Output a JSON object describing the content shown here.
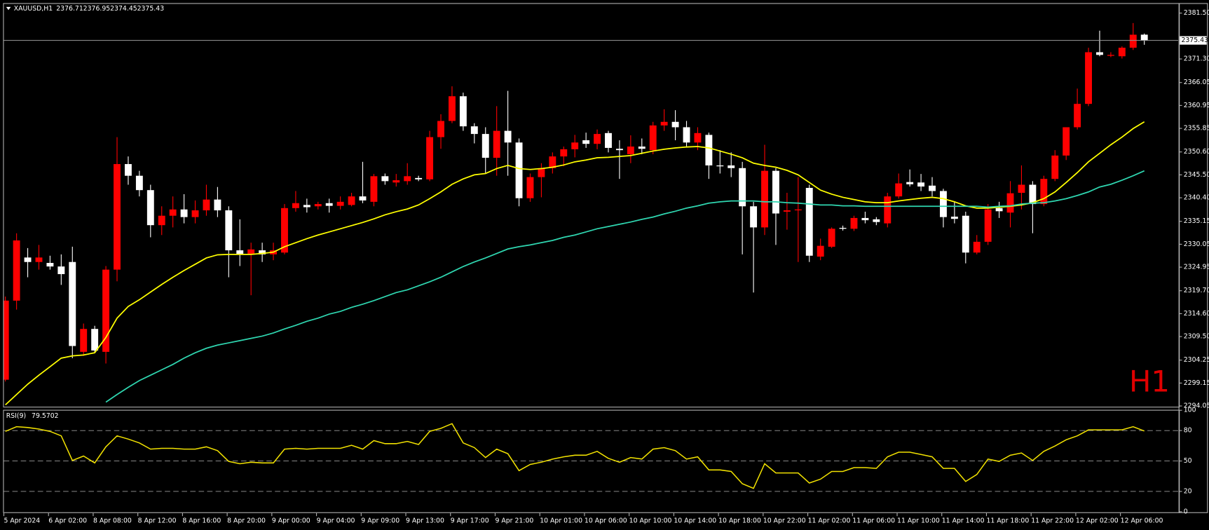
{
  "chart_data": [
    {
      "type": "candlestick",
      "title": "XAUUSD,H1",
      "ohlc": [
        2376.71,
        2376.95,
        2374.45,
        2375.43
      ],
      "watermark": "H1",
      "up_color": "#ff0000",
      "down_color": "#ffffff",
      "ylim": [
        2293.71,
        2383.56
      ],
      "yticks": [
        {
          "value": 2381.5,
          "label": "2381.50"
        },
        {
          "value": 2371.3,
          "label": "2371.30"
        },
        2366.05,
        2360.95,
        2355.85,
        {
          "value": 2350.6,
          "label": "2350.60"
        },
        {
          "value": 2345.5,
          "label": "2345.50"
        },
        {
          "value": 2340.4,
          "label": "2340.40"
        },
        2335.15,
        2330.05,
        2324.95,
        {
          "value": 2319.7,
          "label": "2319.70"
        },
        {
          "value": 2314.6,
          "label": "2314.60"
        },
        {
          "value": 2309.5,
          "label": "2309.50"
        },
        2304.25,
        2299.15,
        2294.05
      ],
      "price_line": 2375.43,
      "categories": [
        "5 Apr 2024",
        null,
        null,
        null,
        "6 Apr 02:00",
        null,
        null,
        null,
        "8 Apr 08:00",
        null,
        null,
        null,
        "8 Apr 12:00",
        null,
        null,
        null,
        "8 Apr 16:00",
        null,
        null,
        null,
        "8 Apr 20:00",
        null,
        null,
        null,
        "9 Apr 00:00",
        null,
        null,
        null,
        "9 Apr 04:00",
        null,
        null,
        null,
        "9 Apr 09:00",
        null,
        null,
        null,
        "9 Apr 13:00",
        null,
        null,
        null,
        "9 Apr 17:00",
        null,
        null,
        null,
        "9 Apr 21:00",
        null,
        null,
        null,
        "10 Apr 01:00",
        null,
        null,
        null,
        "10 Apr 06:00",
        null,
        null,
        null,
        "10 Apr 10:00",
        null,
        null,
        null,
        "10 Apr 14:00",
        null,
        null,
        null,
        "10 Apr 18:00",
        null,
        null,
        null,
        "10 Apr 22:00",
        null,
        null,
        null,
        "11 Apr 02:00",
        null,
        null,
        null,
        "11 Apr 06:00",
        null,
        null,
        null,
        "11 Apr 10:00",
        null,
        null,
        null,
        "11 Apr 14:00",
        null,
        null,
        null,
        "11 Apr 18:00",
        null,
        null,
        null,
        "11 Apr 22:00",
        null,
        null,
        null,
        "12 Apr 02:00",
        null,
        null,
        null,
        "12 Apr 06:00",
        null,
        null
      ],
      "open": [
        2299.9,
        2317.5,
        2327.1,
        2326.1,
        2325.9,
        2325.1,
        2326.1,
        2306.1,
        2311.2,
        2306.1,
        2324.4,
        2347.9,
        2345.3,
        2342.1,
        2334.3,
        2336.4,
        2337.8,
        2336.1,
        2337.6,
        2340.0,
        2337.6,
        2328.7,
        2327.8,
        2328.7,
        2327.8,
        2328.2,
        2338.1,
        2338.8,
        2338.5,
        2339.2,
        2338.6,
        2338.8,
        2340.7,
        2339.5,
        2345.2,
        2343.8,
        2344.1,
        2344.8,
        2344.5,
        2353.9,
        2357.5,
        2363.0,
        2356.3,
        2354.6,
        2349.3,
        2355.3,
        2352.7,
        2340.3,
        2345.0,
        2347.0,
        2349.6,
        2351.2,
        2353.2,
        2352.4,
        2354.8,
        2351.3,
        2350.1,
        2351.8,
        2351.0,
        2356.5,
        2357.3,
        2356.1,
        2352.7,
        2354.4,
        2347.6,
        2347.6,
        2347.0,
        2338.5,
        2333.8,
        2346.4,
        2337.3,
        2337.6,
        2342.6,
        2327.3,
        2329.5,
        2333.7,
        2333.5,
        2335.9,
        2335.6,
        2334.7,
        2340.7,
        2343.9,
        2343.8,
        2343.1,
        2341.9,
        2336.2,
        2336.4,
        2328.2,
        2330.6,
        2338.1,
        2337.1,
        2341.5,
        2343.3,
        2339.0,
        2344.6,
        2349.8,
        2356.1,
        2361.3,
        2372.8,
        2372.0,
        2371.9,
        2373.8,
        2376.71
      ],
      "high": [
        2318.4,
        2332.5,
        2329.2,
        2329.9,
        2327.5,
        2327.8,
        2329.5,
        2312.4,
        2311.9,
        2325.2,
        2353.9,
        2349.6,
        2346.4,
        2343.3,
        2338.5,
        2340.7,
        2341.2,
        2339.8,
        2343.3,
        2342.8,
        2338.5,
        2335.6,
        2330.4,
        2330.4,
        2330.4,
        2339.0,
        2341.9,
        2340.2,
        2339.5,
        2340.2,
        2340.7,
        2341.5,
        2348.4,
        2345.7,
        2345.8,
        2345.7,
        2348.1,
        2345.3,
        2355.3,
        2359.0,
        2365.2,
        2363.8,
        2357.0,
        2356.1,
        2360.8,
        2364.2,
        2353.6,
        2345.8,
        2348.1,
        2350.5,
        2351.8,
        2354.4,
        2354.9,
        2355.6,
        2355.3,
        2353.2,
        2354.3,
        2353.6,
        2357.3,
        2360.1,
        2359.9,
        2357.5,
        2356.1,
        2354.9,
        2351.0,
        2350.5,
        2348.4,
        2339.5,
        2352.2,
        2347.0,
        2341.5,
        2345.0,
        2343.3,
        2331.3,
        2333.8,
        2334.2,
        2336.4,
        2337.3,
        2336.1,
        2341.5,
        2345.8,
        2346.7,
        2345.7,
        2345.0,
        2342.4,
        2339.5,
        2337.3,
        2332.1,
        2339.0,
        2339.5,
        2344.1,
        2347.6,
        2344.1,
        2345.3,
        2351.0,
        2356.1,
        2364.7,
        2373.8,
        2377.6,
        2372.8,
        2374.1,
        2379.3,
        2376.95
      ],
      "low": [
        2299.5,
        2315.5,
        2322.7,
        2324.4,
        2324.4,
        2321.0,
        2304.7,
        2305.2,
        2305.9,
        2303.5,
        2321.8,
        2343.3,
        2340.7,
        2331.6,
        2332.1,
        2333.8,
        2334.7,
        2334.7,
        2336.4,
        2336.1,
        2322.7,
        2325.2,
        2318.7,
        2326.1,
        2326.5,
        2327.8,
        2337.3,
        2337.1,
        2337.8,
        2337.1,
        2337.8,
        2338.5,
        2339.2,
        2338.5,
        2343.3,
        2342.9,
        2343.3,
        2344.1,
        2344.1,
        2351.3,
        2357.0,
        2355.3,
        2352.5,
        2345.8,
        2345.3,
        2345.3,
        2338.5,
        2339.5,
        2340.5,
        2345.8,
        2347.4,
        2349.4,
        2351.5,
        2351.2,
        2350.5,
        2344.6,
        2348.1,
        2350.1,
        2350.1,
        2355.3,
        2353.2,
        2351.8,
        2351.0,
        2344.6,
        2345.8,
        2345.0,
        2327.8,
        2319.3,
        2332.1,
        2329.9,
        2333.3,
        2326.1,
        2326.1,
        2326.5,
        2329.2,
        2333.1,
        2333.0,
        2334.7,
        2334.3,
        2333.8,
        2340.2,
        2342.9,
        2341.9,
        2340.7,
        2333.8,
        2334.7,
        2325.8,
        2327.8,
        2329.9,
        2335.9,
        2333.8,
        2337.8,
        2332.5,
        2338.5,
        2344.1,
        2348.8,
        2355.6,
        2360.8,
        2371.9,
        2371.7,
        2371.4,
        2373.3,
        2374.45
      ],
      "close": [
        2317.5,
        2330.9,
        2326.1,
        2327.1,
        2325.1,
        2323.4,
        2307.4,
        2311.2,
        2306.4,
        2324.4,
        2347.9,
        2345.3,
        2342.1,
        2334.3,
        2336.4,
        2337.8,
        2336.1,
        2337.6,
        2340.0,
        2337.6,
        2328.7,
        2327.8,
        2328.9,
        2327.8,
        2328.7,
        2338.1,
        2339.2,
        2338.3,
        2339.0,
        2338.6,
        2339.5,
        2340.7,
        2339.8,
        2345.2,
        2344.1,
        2344.3,
        2345.2,
        2344.5,
        2353.9,
        2357.5,
        2363.0,
        2356.3,
        2354.6,
        2349.3,
        2355.3,
        2352.7,
        2340.3,
        2345.0,
        2347.0,
        2349.6,
        2351.2,
        2352.7,
        2352.4,
        2354.6,
        2351.5,
        2351.0,
        2351.8,
        2351.3,
        2356.5,
        2357.3,
        2356.1,
        2352.7,
        2354.8,
        2347.6,
        2347.4,
        2347.0,
        2338.5,
        2333.8,
        2346.4,
        2336.9,
        2337.6,
        2337.8,
        2327.5,
        2329.7,
        2333.5,
        2333.5,
        2335.9,
        2335.4,
        2335.0,
        2340.7,
        2343.6,
        2343.4,
        2342.9,
        2341.9,
        2336.1,
        2335.7,
        2328.2,
        2330.6,
        2337.8,
        2337.4,
        2341.4,
        2343.3,
        2339.0,
        2344.6,
        2349.8,
        2356.1,
        2361.3,
        2372.8,
        2372.2,
        2372.2,
        2373.8,
        2376.7,
        2375.43
      ],
      "overlays": [
        {
          "color": "#ffff00",
          "values": [
            2294.3,
            2296.6,
            2298.9,
            2300.9,
            2302.8,
            2304.7,
            2305.2,
            2305.4,
            2305.9,
            2309.3,
            2313.6,
            2316.2,
            2317.7,
            2319.4,
            2321.1,
            2322.7,
            2324.2,
            2325.6,
            2327.0,
            2327.7,
            2327.8,
            2327.8,
            2327.8,
            2328.0,
            2328.3,
            2329.5,
            2330.4,
            2331.3,
            2332.1,
            2332.8,
            2333.5,
            2334.2,
            2334.9,
            2335.7,
            2336.6,
            2337.3,
            2337.9,
            2338.8,
            2340.2,
            2341.7,
            2343.4,
            2344.6,
            2345.5,
            2345.8,
            2346.9,
            2347.6,
            2346.9,
            2346.7,
            2346.9,
            2347.2,
            2347.7,
            2348.4,
            2348.8,
            2349.3,
            2349.4,
            2349.6,
            2349.8,
            2350.3,
            2350.8,
            2351.2,
            2351.5,
            2351.7,
            2351.8,
            2351.5,
            2350.8,
            2350.1,
            2349.3,
            2348.1,
            2347.6,
            2347.2,
            2346.5,
            2345.5,
            2343.8,
            2342.1,
            2341.2,
            2340.5,
            2340.0,
            2339.5,
            2339.3,
            2339.3,
            2339.7,
            2340.0,
            2340.3,
            2340.5,
            2340.2,
            2339.5,
            2338.6,
            2338.1,
            2338.1,
            2338.3,
            2338.5,
            2338.8,
            2339.3,
            2340.2,
            2341.7,
            2343.8,
            2346.0,
            2348.4,
            2350.3,
            2352.2,
            2353.9,
            2355.8,
            2357.3
          ]
        },
        {
          "color": "#2fd6b0",
          "values": [
            null,
            null,
            null,
            null,
            null,
            null,
            null,
            null,
            null,
            2294.9,
            2296.6,
            2298.2,
            2299.7,
            2300.9,
            2302.1,
            2303.3,
            2304.7,
            2305.9,
            2306.9,
            2307.6,
            2308.1,
            2308.6,
            2309.1,
            2309.6,
            2310.3,
            2311.2,
            2312.0,
            2312.9,
            2313.6,
            2314.5,
            2315.1,
            2316.0,
            2316.7,
            2317.5,
            2318.4,
            2319.3,
            2319.9,
            2320.8,
            2321.7,
            2322.7,
            2323.9,
            2325.1,
            2326.1,
            2327.0,
            2328.0,
            2329.0,
            2329.5,
            2329.9,
            2330.4,
            2330.9,
            2331.6,
            2332.1,
            2332.8,
            2333.5,
            2334.0,
            2334.5,
            2335.0,
            2335.6,
            2336.1,
            2336.8,
            2337.4,
            2338.1,
            2338.6,
            2339.2,
            2339.5,
            2339.7,
            2339.7,
            2339.7,
            2339.5,
            2339.5,
            2339.3,
            2339.2,
            2339.0,
            2338.8,
            2338.8,
            2338.6,
            2338.6,
            2338.5,
            2338.5,
            2338.5,
            2338.5,
            2338.5,
            2338.5,
            2338.5,
            2338.5,
            2338.5,
            2338.5,
            2338.5,
            2338.3,
            2338.5,
            2338.6,
            2339.0,
            2339.2,
            2339.3,
            2339.7,
            2340.2,
            2340.9,
            2341.7,
            2342.8,
            2343.4,
            2344.3,
            2345.3,
            2346.4
          ]
        }
      ]
    },
    {
      "type": "line",
      "title": "RSI(9)",
      "last_value": 79.5702,
      "color": "#f0e000",
      "ylim": [
        0,
        100
      ],
      "yticks": [
        0,
        20,
        50,
        80,
        100
      ],
      "levels": [
        20,
        50,
        80
      ],
      "values": [
        79.2,
        83.8,
        83.0,
        81.5,
        79.2,
        74.8,
        50.5,
        54.9,
        48.1,
        64.0,
        74.8,
        71.6,
        67.8,
        61.7,
        62.5,
        62.5,
        61.7,
        61.7,
        64.0,
        60.2,
        49.6,
        47.3,
        48.8,
        48.1,
        48.1,
        61.7,
        62.5,
        61.7,
        62.5,
        62.5,
        62.5,
        65.5,
        61.7,
        70.1,
        67.1,
        67.1,
        69.3,
        66.3,
        79.2,
        82.2,
        86.8,
        67.8,
        63.2,
        53.4,
        61.7,
        57.2,
        40.5,
        46.6,
        48.8,
        51.9,
        54.1,
        55.7,
        55.7,
        59.5,
        52.6,
        48.8,
        53.4,
        51.9,
        61.7,
        63.2,
        60.2,
        51.9,
        54.1,
        41.2,
        41.2,
        39.7,
        27.6,
        23.0,
        47.3,
        38.2,
        38.2,
        38.2,
        28.3,
        32.1,
        39.7,
        39.7,
        43.5,
        43.5,
        42.7,
        54.1,
        58.7,
        58.7,
        56.4,
        54.1,
        42.7,
        42.7,
        29.8,
        36.7,
        51.9,
        49.6,
        55.7,
        57.9,
        50.5,
        59.5,
        64.8,
        70.9,
        74.8,
        80.7,
        80.7,
        80.7,
        80.7,
        83.8,
        79.5702
      ]
    }
  ]
}
